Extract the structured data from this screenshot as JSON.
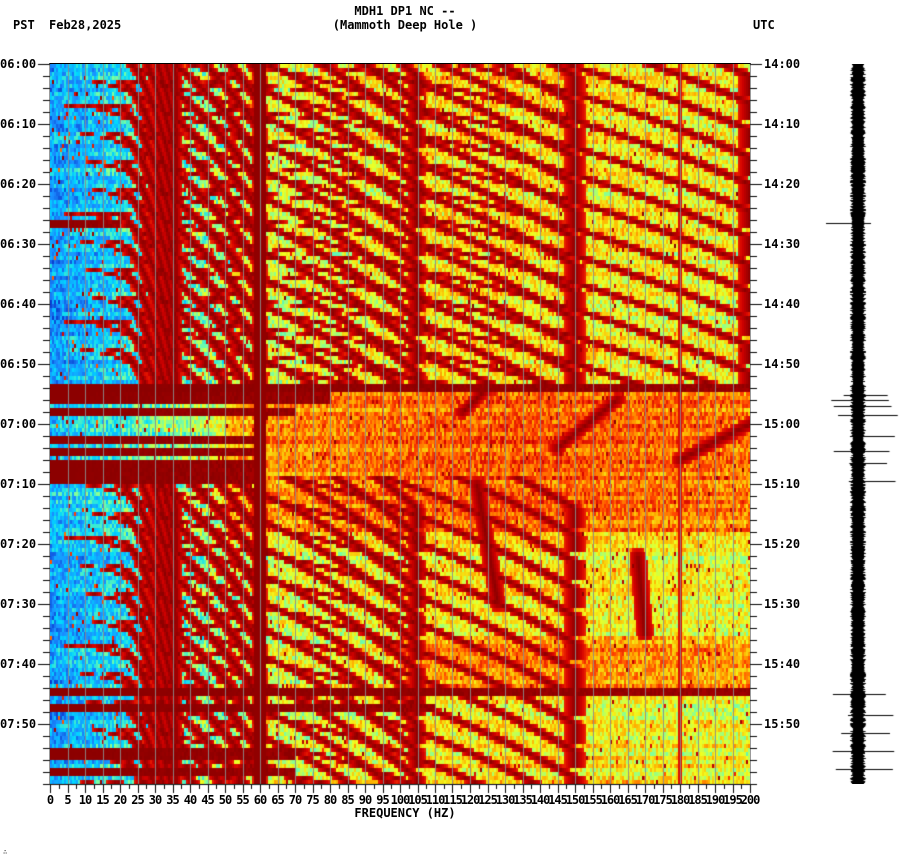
{
  "header": {
    "title_line1": "MDH1 DP1 NC --",
    "title_line2": "(Mammoth Deep Hole )",
    "left_timezone": "PST",
    "date": "Feb28,2025",
    "right_timezone": "UTC"
  },
  "footer": {
    "mark": "∴"
  },
  "colors": {
    "frame": "#000000",
    "gridline": "#8c8c8c",
    "colormap": [
      "#0a3dcf",
      "#1a8cff",
      "#00d8ff",
      "#7dffa0",
      "#f0ff20",
      "#ffb000",
      "#ff4400",
      "#d40000",
      "#8b0000"
    ],
    "seismogram": "#000000"
  },
  "chart_data": {
    "type": "heatmap",
    "title": "MDH1 DP1 NC -- (Mammoth Deep Hole )",
    "subtitle": "Feb28,2025",
    "xlabel": "FREQUENCY (HZ)",
    "ylabel_left": "PST",
    "ylabel_right": "UTC",
    "xlim": [
      0,
      200
    ],
    "x_ticks": [
      0,
      5,
      10,
      15,
      20,
      25,
      30,
      35,
      40,
      45,
      50,
      55,
      60,
      65,
      70,
      75,
      80,
      85,
      90,
      95,
      100,
      105,
      110,
      115,
      120,
      125,
      130,
      135,
      140,
      145,
      150,
      155,
      160,
      165,
      170,
      175,
      180,
      185,
      190,
      195,
      200
    ],
    "y_ticks_left": [
      "06:00",
      "06:10",
      "06:20",
      "06:30",
      "06:40",
      "06:50",
      "07:00",
      "07:10",
      "07:20",
      "07:30",
      "07:40",
      "07:50"
    ],
    "y_ticks_right": [
      "14:00",
      "14:10",
      "14:20",
      "14:30",
      "14:40",
      "14:50",
      "15:00",
      "15:10",
      "15:20",
      "15:30",
      "15:40",
      "15:50"
    ],
    "time_range_minutes": [
      0,
      120
    ],
    "minor_tick_minutes": 2,
    "persistent_line_hz": 60,
    "secondary_line_hz": 180,
    "background_gradient": {
      "low_freq_level": 0.15,
      "high_freq_level": 0.5,
      "knee_hz": 60
    },
    "arc_families": [
      {
        "name": "doppler-arcs-early",
        "start_minute": 0,
        "end_minute": 50,
        "spacing_minutes": 4.5,
        "peak_hz": [
          20,
          60,
          105,
          150,
          200
        ]
      },
      {
        "name": "doppler-arcs-late",
        "start_minute": 72,
        "end_minute": 120,
        "spacing_minutes": 4.5,
        "peak_hz": [
          20,
          60,
          105,
          150
        ]
      }
    ],
    "strong_bands": [
      {
        "minute": 26.5,
        "width": 1.0,
        "hz_end": 20
      },
      {
        "minute": 54.0,
        "width": 1.0,
        "hz_end": 200
      },
      {
        "minute": 55.5,
        "width": 1.5,
        "hz_end": 80
      },
      {
        "minute": 58.0,
        "width": 1.2,
        "hz_end": 70
      },
      {
        "minute": 62.5,
        "width": 1.0,
        "hz_end": 60
      },
      {
        "minute": 64.5,
        "width": 1.0,
        "hz_end": 60
      },
      {
        "minute": 67.0,
        "width": 1.0,
        "hz_end": 60
      },
      {
        "minute": 69.0,
        "width": 1.5,
        "hz_end": 60
      },
      {
        "minute": 104.5,
        "width": 1.0,
        "hz_end": 200
      },
      {
        "minute": 107.5,
        "width": 1.0,
        "hz_end": 110
      },
      {
        "minute": 115.0,
        "width": 1.0,
        "hz_end": 70
      },
      {
        "minute": 118.0,
        "width": 1.0,
        "hz_end": 70
      }
    ],
    "noisy_period_minutes": [
      54,
      78
    ],
    "event_tracks": [
      {
        "from": [
          118,
          58
        ],
        "to": [
          125,
          54
        ],
        "label": "diagonal-1"
      },
      {
        "from": [
          145,
          64
        ],
        "to": [
          162,
          56
        ],
        "label": "diagonal-2"
      },
      {
        "from": [
          180,
          66
        ],
        "to": [
          200,
          60
        ],
        "label": "diagonal-3"
      },
      {
        "from": [
          122,
          70
        ],
        "to": [
          128,
          90
        ],
        "label": "vertical-1"
      },
      {
        "from": [
          168,
          82
        ],
        "to": [
          170,
          95
        ],
        "label": "vertical-2"
      }
    ],
    "seismogram": {
      "spikes_minutes": [
        55.2,
        56.0,
        57.0,
        58.5,
        62,
        64.5,
        66.5,
        69.5,
        105,
        108.5,
        111.5,
        114.5,
        117.5,
        120
      ]
    }
  }
}
